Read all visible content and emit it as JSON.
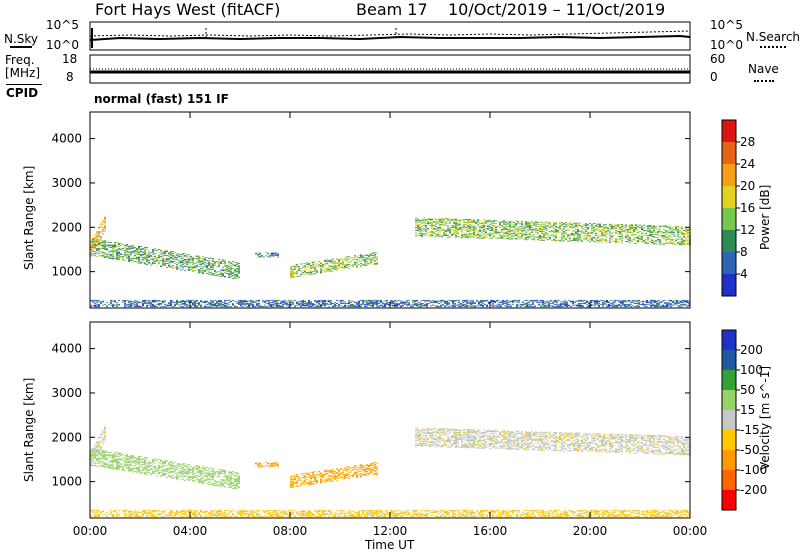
{
  "header": {
    "title": "Fort Hays West (fitACF)",
    "beam": "Beam 17",
    "dates": "10/Oct/2019 – 11/Oct/2019"
  },
  "strips": {
    "nsky": {
      "label": "N.Sky",
      "ticks": [
        "10^5",
        "10^0"
      ]
    },
    "nsearch": {
      "label": "N.Search",
      "ticks": [
        "10^5",
        "10^0"
      ]
    },
    "freq": {
      "label_line1": "Freq.",
      "label_line2": "[MHz]",
      "ticks": [
        "18",
        "8"
      ]
    },
    "nave": {
      "label": "Nave",
      "ticks": [
        "60",
        "0"
      ]
    },
    "cpid": {
      "label": "CPID",
      "mode": "normal (fast) 151 IF"
    }
  },
  "colors": {
    "power": [
      "#1e32c8",
      "#2d64b4",
      "#2e8b57",
      "#78c850",
      "#e6d21e",
      "#f5a014",
      "#e66414",
      "#dc1414"
    ],
    "velocity": [
      "#ff0000",
      "#ff6400",
      "#ff9a00",
      "#ffc800",
      "#c8c8c8",
      "#96d264",
      "#32a032",
      "#1e5aa0",
      "#1e32c8"
    ]
  },
  "chart_data": [
    {
      "type": "heatmap",
      "title": "Power",
      "xlabel": "Time UT",
      "ylabel": "Slant Range [km]",
      "x_ticks": [
        "00:00",
        "04:00",
        "08:00",
        "12:00",
        "16:00",
        "20:00",
        "00:00"
      ],
      "x_range_hours": [
        0,
        24
      ],
      "y_ticks": [
        1000,
        2000,
        3000,
        4000
      ],
      "y_range_km": [
        180,
        4600
      ],
      "colorbar": {
        "label": "Power [dB]",
        "ticks": [
          4,
          8,
          12,
          16,
          20,
          24,
          28
        ],
        "range": [
          0,
          32
        ]
      },
      "features": [
        {
          "name": "dusk band",
          "start_hour": 0.0,
          "end_hour": 6.0,
          "range_start_km": 1550,
          "range_end_km": 1000,
          "width_km": 380,
          "power_db": 12
        },
        {
          "name": "early echoes",
          "start_hour": 0.0,
          "end_hour": 0.6,
          "range_start_km": 1500,
          "range_end_km": 2100,
          "width_km": 350,
          "power_db": 20
        },
        {
          "name": "small patch",
          "start_hour": 6.6,
          "end_hour": 7.5,
          "range_start_km": 1380,
          "range_end_km": 1380,
          "width_km": 120,
          "power_db": 8
        },
        {
          "name": "morning band",
          "start_hour": 8.0,
          "end_hour": 11.5,
          "range_start_km": 1000,
          "range_end_km": 1300,
          "width_km": 280,
          "power_db": 14
        },
        {
          "name": "afternoon band",
          "start_hour": 13.0,
          "end_hour": 24.0,
          "range_start_km": 2000,
          "range_end_km": 1800,
          "width_km": 420,
          "power_db": 14
        },
        {
          "name": "near-range clutter",
          "start_hour": 0.0,
          "end_hour": 24.0,
          "range_start_km": 280,
          "range_end_km": 280,
          "width_km": 160,
          "power_db": 6
        }
      ]
    },
    {
      "type": "heatmap",
      "title": "Velocity",
      "xlabel": "Time UT",
      "ylabel": "Slant Range [km]",
      "x_ticks": [
        "00:00",
        "04:00",
        "08:00",
        "12:00",
        "16:00",
        "20:00",
        "00:00"
      ],
      "x_range_hours": [
        0,
        24
      ],
      "y_ticks": [
        1000,
        2000,
        3000,
        4000
      ],
      "y_range_km": [
        180,
        4600
      ],
      "colorbar": {
        "label": "Velocity [m s^-1]",
        "ticks": [
          "200",
          "100",
          "50",
          "15",
          "-15",
          "-50",
          "-100",
          "-200"
        ]
      },
      "features": [
        {
          "name": "dusk band",
          "start_hour": 0.0,
          "end_hour": 6.0,
          "velocity_ms": 30
        },
        {
          "name": "early echoes",
          "start_hour": 0.0,
          "end_hour": 0.6,
          "velocity_ms": 0
        },
        {
          "name": "small patch",
          "start_hour": 6.6,
          "end_hour": 7.5,
          "velocity_ms": -80
        },
        {
          "name": "morning band",
          "start_hour": 8.0,
          "end_hour": 11.5,
          "velocity_ms": -60
        },
        {
          "name": "afternoon band",
          "start_hour": 13.0,
          "end_hour": 24.0,
          "velocity_ms": 0
        },
        {
          "name": "near-range clutter",
          "start_hour": 0.0,
          "end_hour": 24.0,
          "velocity_ms": -30
        }
      ]
    }
  ]
}
